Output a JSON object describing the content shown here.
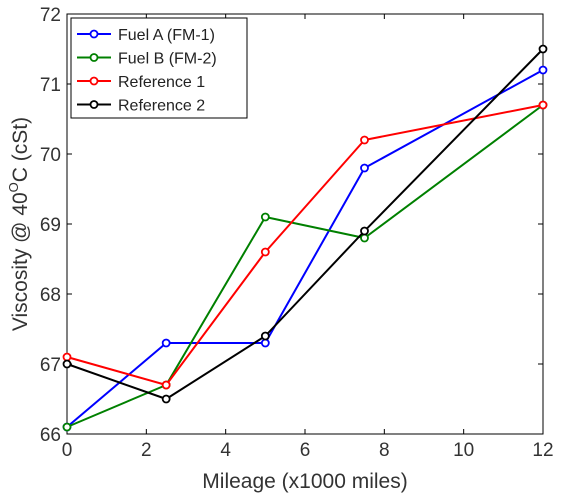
{
  "chart_data": {
    "type": "line",
    "title": "",
    "xlabel": "Mileage (x1000 miles)",
    "ylabel_prefix": "Viscosity @ 40",
    "ylabel_sup": "O",
    "ylabel_suffix": "C (cSt)",
    "xlim": [
      0,
      12
    ],
    "ylim": [
      66,
      72
    ],
    "xticks": [
      0,
      2,
      4,
      6,
      8,
      10,
      12
    ],
    "yticks": [
      66,
      67,
      68,
      69,
      70,
      71,
      72
    ],
    "grid": false,
    "legend_position": "top-left",
    "x": [
      0,
      2.5,
      5,
      7.5,
      12
    ],
    "series": [
      {
        "name": "Fuel A (FM-1)",
        "color": "#0000ff",
        "values": [
          66.1,
          67.3,
          67.3,
          69.8,
          71.2
        ]
      },
      {
        "name": "Fuel B (FM-2)",
        "color": "#008000",
        "values": [
          66.1,
          66.7,
          69.1,
          68.8,
          70.7
        ]
      },
      {
        "name": "Reference 1",
        "color": "#ff0000",
        "values": [
          67.1,
          66.7,
          68.6,
          70.2,
          70.7
        ]
      },
      {
        "name": "Reference 2",
        "color": "#000000",
        "values": [
          67.0,
          66.5,
          67.4,
          68.9,
          71.5
        ]
      }
    ]
  }
}
